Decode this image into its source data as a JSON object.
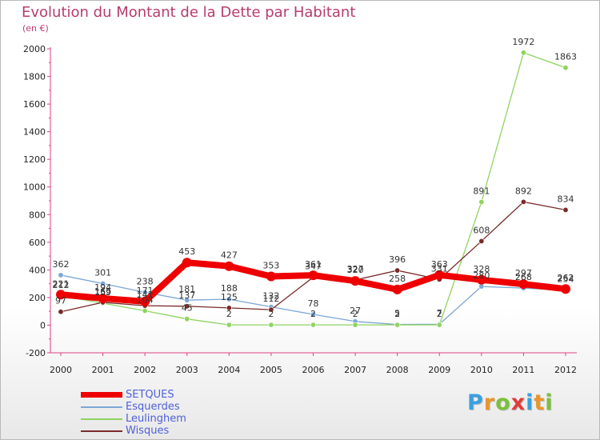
{
  "title": "Evolution du Montant de la Dette par Habitant",
  "unit_label": "(en €)",
  "logo": {
    "letters": [
      "P",
      "r",
      "o",
      "x",
      "i",
      "t",
      "i"
    ],
    "colors": [
      "#3aa0e0",
      "#e8962a",
      "#7cc03a",
      "#e03c3c",
      "#3aa0e0",
      "#e8962a",
      "#7cc03a"
    ]
  },
  "chart_data": {
    "type": "line",
    "title": "Evolution du Montant de la Dette par Habitant",
    "ylabel": "(en €)",
    "xlabel": "",
    "x": [
      "2000",
      "2001",
      "2002",
      "2003",
      "2004",
      "2005",
      "2006",
      "2007",
      "2008",
      "2009",
      "2010",
      "2011",
      "2012"
    ],
    "ylim": [
      -200,
      2000
    ],
    "yticks": [
      -200,
      0,
      200,
      400,
      600,
      800,
      1000,
      1200,
      1400,
      1600,
      1800,
      2000
    ],
    "grid": false,
    "legend_position": "bottom-left",
    "series": [
      {
        "name": "SETQUES",
        "color": "#ee0000",
        "values": [
          221,
          194,
          171,
          453,
          427,
          353,
          361,
          320,
          258,
          363,
          328,
          297,
          262
        ]
      },
      {
        "name": "Esquerdes",
        "color": "#7ba7d7",
        "values": [
          362,
          301,
          238,
          181,
          188,
          132,
          78,
          27,
          5,
          7,
          280,
          268,
          254
        ]
      },
      {
        "name": "Leulinghem",
        "color": "#8fd460",
        "values": [
          212,
          159,
          104,
          45,
          2,
          2,
          2,
          2,
          2,
          2,
          891,
          1972,
          1863
        ]
      },
      {
        "name": "Wisques",
        "color": "#7a2a2a",
        "values": [
          97,
          165,
          141,
          137,
          125,
          112,
          347,
          327,
          396,
          331,
          608,
          892,
          834
        ]
      }
    ]
  }
}
